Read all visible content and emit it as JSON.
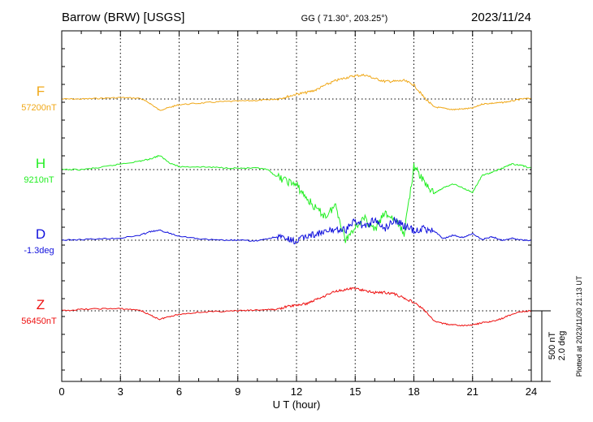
{
  "header": {
    "station": "Barrow (BRW)  [USGS]",
    "coords": "GG ( 71.30°, 203.25°)",
    "date": "2023/11/24"
  },
  "footer": {
    "xlabel": "U T (hour)",
    "plotted": "Plotted at 2023/11/30 21:13 UT"
  },
  "scale": {
    "nt": "500 nT",
    "deg": "2.0 deg"
  },
  "chart_data": {
    "type": "line",
    "xlabel": "U T (hour)",
    "xlim": [
      0,
      24
    ],
    "x_ticks": [
      0,
      3,
      6,
      9,
      12,
      15,
      18,
      21,
      24
    ],
    "x_tick_labels": [
      "0",
      "3",
      "6",
      "9",
      "12",
      "15",
      "18",
      "21",
      "24"
    ],
    "grid": true,
    "scale_bar": "500 nT / 2.0 deg",
    "x": [
      0,
      1,
      2,
      3,
      4,
      4.5,
      5,
      5.5,
      6,
      7,
      8,
      9,
      10,
      10.5,
      11,
      11.5,
      12,
      12.5,
      13,
      13.5,
      14,
      14.5,
      15,
      15.5,
      16,
      16.5,
      17,
      17.5,
      18,
      18.5,
      19,
      19.5,
      20,
      20.5,
      21,
      21.5,
      22,
      22.5,
      23,
      23.5,
      24
    ],
    "series": [
      {
        "name": "F",
        "baseline_label": "57200nT",
        "unit": "nT",
        "color": "#f0a818",
        "values": [
          57200,
          57200,
          57205,
          57210,
          57205,
          57170,
          57120,
          57140,
          57160,
          57170,
          57180,
          57185,
          57190,
          57195,
          57200,
          57215,
          57235,
          57245,
          57265,
          57300,
          57330,
          57350,
          57365,
          57370,
          57345,
          57325,
          57325,
          57330,
          57300,
          57215,
          57145,
          57135,
          57125,
          57130,
          57135,
          57165,
          57170,
          57175,
          57185,
          57200,
          57205
        ]
      },
      {
        "name": "H",
        "baseline_label": "9210nT",
        "unit": "nT",
        "color": "#22ee22",
        "values": [
          9210,
          9210,
          9225,
          9250,
          9270,
          9285,
          9310,
          9260,
          9230,
          9230,
          9225,
          9220,
          9220,
          9210,
          9160,
          9130,
          9100,
          9010,
          8930,
          8880,
          8960,
          8710,
          8810,
          8860,
          8780,
          8900,
          8860,
          8760,
          9230,
          9130,
          9040,
          9080,
          9110,
          9080,
          9050,
          9170,
          9190,
          9220,
          9250,
          9240,
          9220
        ]
      },
      {
        "name": "D",
        "baseline_label": "-1.3deg",
        "unit": "deg",
        "color": "#1010dd",
        "values": [
          -1.3,
          -1.28,
          -1.26,
          -1.24,
          -1.16,
          -1.06,
          -1.02,
          -1.1,
          -1.18,
          -1.26,
          -1.3,
          -1.3,
          -1.32,
          -1.26,
          -1.2,
          -1.28,
          -1.34,
          -1.18,
          -1.12,
          -1.08,
          -0.98,
          -1.02,
          -0.74,
          -0.92,
          -0.72,
          -0.98,
          -0.7,
          -0.9,
          -1.02,
          -0.98,
          -1.02,
          -1.26,
          -1.16,
          -1.22,
          -1.12,
          -1.28,
          -1.2,
          -1.3,
          -1.24,
          -1.3,
          -1.3
        ]
      },
      {
        "name": "Z",
        "baseline_label": "56450nT",
        "unit": "nT",
        "color": "#ee1111",
        "values": [
          56450,
          56460,
          56465,
          56465,
          56455,
          56420,
          56390,
          56410,
          56425,
          56440,
          56445,
          56450,
          56455,
          56458,
          56460,
          56480,
          56490,
          56500,
          56530,
          56560,
          56590,
          56600,
          56610,
          56590,
          56580,
          56580,
          56570,
          56540,
          56510,
          56460,
          56380,
          56360,
          56350,
          56345,
          56350,
          56365,
          56375,
          56395,
          56425,
          56445,
          56450
        ]
      }
    ]
  }
}
